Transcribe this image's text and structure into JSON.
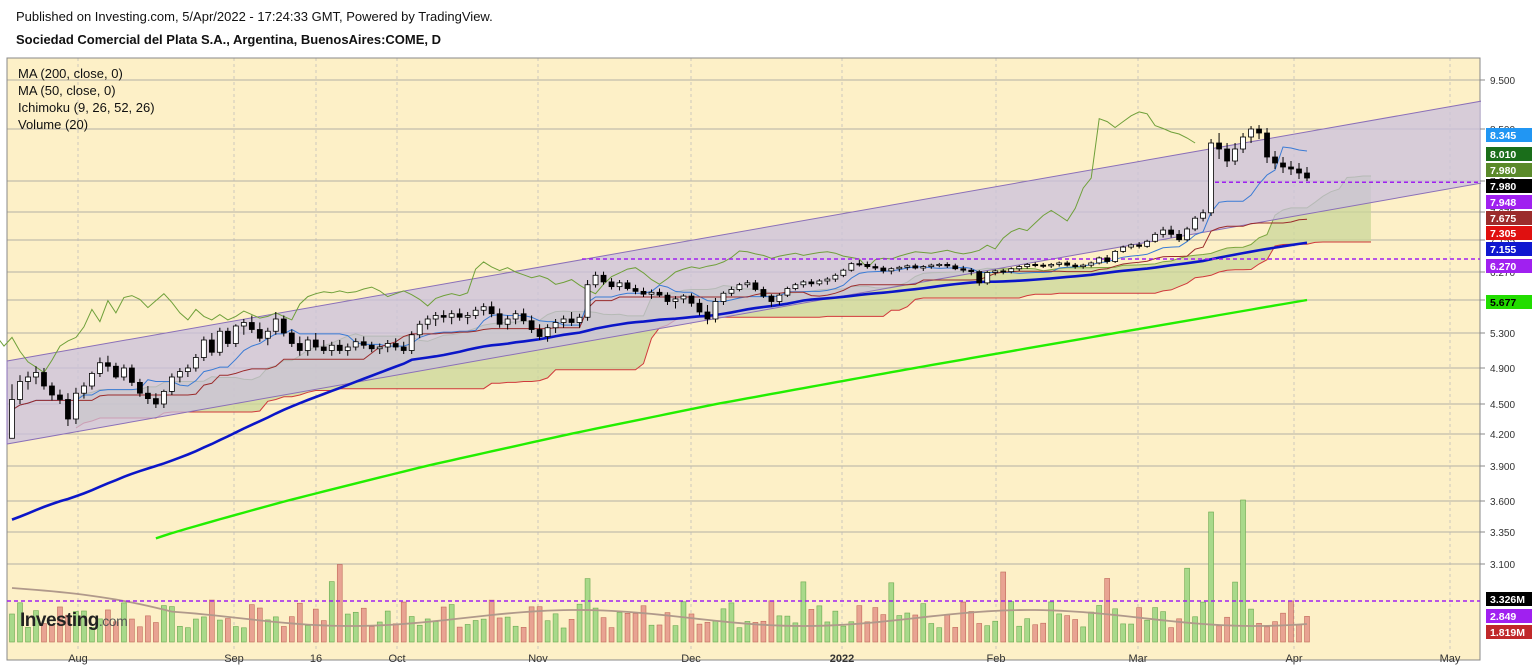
{
  "header": {
    "published": "Published on Investing.com, 5/Apr/2022 - 17:24:33 GMT, Powered by TradingView.",
    "title": "Sociedad Comercial del Plata S.A., Argentina, BuenosAires:COME, D"
  },
  "legend": [
    "MA (200, close, 0)",
    "MA (50, close, 0)",
    "Ichimoku (9, 26, 52, 26)",
    "Volume (20)"
  ],
  "logo": {
    "main": "Investing",
    "suffix": ".com"
  },
  "colors": {
    "background": "#fdf0c7",
    "up_candle": "#ffffff",
    "down_candle": "#000000",
    "ma200": "#22ee00",
    "ma50": "#0b16c8",
    "channel_fill": "#c9c0dd",
    "channel_line": "#8a6fb8",
    "cloud": "#c9d79a",
    "tenkan": "#3a7bd5",
    "kijun": "#9b2c2c",
    "span_a": "#7da640",
    "span_b": "#d0393b",
    "dashed": "#a020f0",
    "vol_up": "#a8d98a",
    "vol_down": "#e8a392",
    "vol_ma": "#b0998b"
  },
  "chart_data": {
    "type": "candlestick",
    "price_axis_ticks": [
      "9.500",
      "8.500",
      "7.980",
      "7.675",
      "7.155",
      "6.270",
      "5.677",
      "5.300",
      "4.900",
      "4.500",
      "4.200",
      "3.900",
      "3.600",
      "3.350",
      "3.100"
    ],
    "x_ticks": [
      "Aug",
      "Sep",
      "16",
      "Oct",
      "Nov",
      "Dec",
      "2022",
      "Feb",
      "Mar",
      "Apr",
      "May"
    ],
    "price_labels": [
      {
        "text": "8.345",
        "color": "#2196f3"
      },
      {
        "text": "8.010",
        "color": "#1a6e1a"
      },
      {
        "text": "7.980",
        "color": "#5a8a2a"
      },
      {
        "text": "7.980",
        "color": "#000000"
      },
      {
        "text": "7.948",
        "color": "#a020f0"
      },
      {
        "text": "7.675",
        "color": "#9b2c2c"
      },
      {
        "text": "7.305",
        "color": "#e01010"
      },
      {
        "text": "7.155",
        "color": "#1018d0"
      },
      {
        "text": "6.270",
        "color": "#a020f0"
      },
      {
        "text": "5.677",
        "color": "#22dd00"
      },
      {
        "text": "3.326M",
        "color": "#000000"
      },
      {
        "text": "2.849",
        "color": "#a020f0"
      },
      {
        "text": "1.819M",
        "color": "#c0282a"
      }
    ],
    "dashed_levels": [
      7.948,
      6.27
    ],
    "volume_dashed": 2.849,
    "ma200": {
      "start": 3.1,
      "end": 5.677
    },
    "ma50": {
      "start": 3.45,
      "end": 7.155
    },
    "candles": [
      [
        4.16,
        4.72,
        4.16,
        4.55
      ],
      [
        4.55,
        4.82,
        4.5,
        4.75
      ],
      [
        4.75,
        4.86,
        4.66,
        4.8
      ],
      [
        4.8,
        4.92,
        4.72,
        4.85
      ],
      [
        4.85,
        4.9,
        4.66,
        4.7
      ],
      [
        4.7,
        4.74,
        4.54,
        4.6
      ],
      [
        4.6,
        4.66,
        4.5,
        4.55
      ],
      [
        4.55,
        4.62,
        4.28,
        4.35
      ],
      [
        4.35,
        4.68,
        4.3,
        4.62
      ],
      [
        4.62,
        4.74,
        4.56,
        4.7
      ],
      [
        4.7,
        4.86,
        4.66,
        4.84
      ],
      [
        4.84,
        5.02,
        4.8,
        4.96
      ],
      [
        4.96,
        5.04,
        4.86,
        4.92
      ],
      [
        4.92,
        4.96,
        4.78,
        4.8
      ],
      [
        4.8,
        4.94,
        4.76,
        4.9
      ],
      [
        4.9,
        4.94,
        4.7,
        4.74
      ],
      [
        4.74,
        4.78,
        4.58,
        4.62
      ],
      [
        4.62,
        4.7,
        4.5,
        4.56
      ],
      [
        4.56,
        4.62,
        4.46,
        4.5
      ],
      [
        4.5,
        4.66,
        4.46,
        4.64
      ],
      [
        4.64,
        4.84,
        4.6,
        4.8
      ],
      [
        4.8,
        4.9,
        4.74,
        4.86
      ],
      [
        4.86,
        4.94,
        4.8,
        4.9
      ],
      [
        4.9,
        5.06,
        4.86,
        5.02
      ],
      [
        5.02,
        5.26,
        4.98,
        5.22
      ],
      [
        5.22,
        5.3,
        5.04,
        5.08
      ],
      [
        5.08,
        5.36,
        5.04,
        5.32
      ],
      [
        5.32,
        5.36,
        5.14,
        5.18
      ],
      [
        5.18,
        5.4,
        5.14,
        5.38
      ],
      [
        5.38,
        5.46,
        5.28,
        5.42
      ],
      [
        5.42,
        5.5,
        5.3,
        5.34
      ],
      [
        5.34,
        5.42,
        5.2,
        5.24
      ],
      [
        5.24,
        5.36,
        5.16,
        5.32
      ],
      [
        5.32,
        5.54,
        5.28,
        5.46
      ],
      [
        5.46,
        5.5,
        5.26,
        5.3
      ],
      [
        5.3,
        5.34,
        5.14,
        5.18
      ],
      [
        5.18,
        5.26,
        5.04,
        5.1
      ],
      [
        5.1,
        5.26,
        5.04,
        5.22
      ],
      [
        5.22,
        5.3,
        5.1,
        5.14
      ],
      [
        5.14,
        5.22,
        5.06,
        5.1
      ],
      [
        5.1,
        5.2,
        5.04,
        5.16
      ],
      [
        5.16,
        5.22,
        5.06,
        5.1
      ],
      [
        5.1,
        5.18,
        5.04,
        5.14
      ],
      [
        5.14,
        5.24,
        5.1,
        5.2
      ],
      [
        5.2,
        5.26,
        5.12,
        5.16
      ],
      [
        5.16,
        5.2,
        5.08,
        5.12
      ],
      [
        5.12,
        5.18,
        5.06,
        5.14
      ],
      [
        5.14,
        5.22,
        5.08,
        5.18
      ],
      [
        5.18,
        5.24,
        5.1,
        5.14
      ],
      [
        5.14,
        5.2,
        5.06,
        5.1
      ],
      [
        5.1,
        5.32,
        5.06,
        5.28
      ],
      [
        5.28,
        5.44,
        5.24,
        5.4
      ],
      [
        5.4,
        5.5,
        5.34,
        5.46
      ],
      [
        5.46,
        5.54,
        5.38,
        5.5
      ],
      [
        5.5,
        5.56,
        5.42,
        5.48
      ],
      [
        5.48,
        5.56,
        5.4,
        5.52
      ],
      [
        5.52,
        5.58,
        5.44,
        5.48
      ],
      [
        5.48,
        5.54,
        5.4,
        5.5
      ],
      [
        5.5,
        5.6,
        5.46,
        5.56
      ],
      [
        5.56,
        5.64,
        5.5,
        5.6
      ],
      [
        5.6,
        5.66,
        5.48,
        5.52
      ],
      [
        5.52,
        5.58,
        5.36,
        5.4
      ],
      [
        5.4,
        5.5,
        5.34,
        5.46
      ],
      [
        5.46,
        5.56,
        5.4,
        5.52
      ],
      [
        5.52,
        5.58,
        5.4,
        5.44
      ],
      [
        5.44,
        5.5,
        5.3,
        5.34
      ],
      [
        5.34,
        5.4,
        5.22,
        5.26
      ],
      [
        5.26,
        5.4,
        5.2,
        5.36
      ],
      [
        5.36,
        5.46,
        5.3,
        5.42
      ],
      [
        5.42,
        5.5,
        5.36,
        5.46
      ],
      [
        5.46,
        5.54,
        5.38,
        5.42
      ],
      [
        5.42,
        5.52,
        5.36,
        5.48
      ],
      [
        5.48,
        6.1,
        5.44,
        6.0
      ],
      [
        6.0,
        6.28,
        5.94,
        6.2
      ],
      [
        6.2,
        6.28,
        6.0,
        6.06
      ],
      [
        6.06,
        6.14,
        5.9,
        5.96
      ],
      [
        5.96,
        6.1,
        5.88,
        6.04
      ],
      [
        6.04,
        6.1,
        5.88,
        5.92
      ],
      [
        5.92,
        6.0,
        5.8,
        5.86
      ],
      [
        5.86,
        5.94,
        5.74,
        5.8
      ],
      [
        5.8,
        5.9,
        5.7,
        5.84
      ],
      [
        5.84,
        5.92,
        5.74,
        5.78
      ],
      [
        5.78,
        5.84,
        5.62,
        5.66
      ],
      [
        5.66,
        5.76,
        5.58,
        5.7
      ],
      [
        5.7,
        5.8,
        5.64,
        5.76
      ],
      [
        5.76,
        5.82,
        5.6,
        5.64
      ],
      [
        5.64,
        5.7,
        5.5,
        5.54
      ],
      [
        5.54,
        5.62,
        5.4,
        5.46
      ],
      [
        5.46,
        5.72,
        5.42,
        5.66
      ],
      [
        5.66,
        5.86,
        5.62,
        5.82
      ],
      [
        5.82,
        5.96,
        5.76,
        5.9
      ],
      [
        5.9,
        6.04,
        5.86,
        6.0
      ],
      [
        6.0,
        6.1,
        5.94,
        6.04
      ],
      [
        6.04,
        6.1,
        5.86,
        5.9
      ],
      [
        5.9,
        5.96,
        5.72,
        5.76
      ],
      [
        5.76,
        5.8,
        5.6,
        5.66
      ],
      [
        5.66,
        5.82,
        5.62,
        5.78
      ],
      [
        5.78,
        5.96,
        5.74,
        5.92
      ],
      [
        5.92,
        6.04,
        5.88,
        6.0
      ],
      [
        6.0,
        6.1,
        5.94,
        6.06
      ],
      [
        6.06,
        6.12,
        5.96,
        6.02
      ],
      [
        6.02,
        6.12,
        5.98,
        6.08
      ],
      [
        6.08,
        6.16,
        6.0,
        6.12
      ],
      [
        6.12,
        6.24,
        6.06,
        6.2
      ],
      [
        6.2,
        6.36,
        6.16,
        6.32
      ],
      [
        6.32,
        6.54,
        6.28,
        6.5
      ],
      [
        6.5,
        6.6,
        6.42,
        6.48
      ],
      [
        6.48,
        6.56,
        6.36,
        6.42
      ],
      [
        6.42,
        6.5,
        6.32,
        6.38
      ],
      [
        6.38,
        6.44,
        6.24,
        6.3
      ],
      [
        6.3,
        6.4,
        6.22,
        6.36
      ],
      [
        6.36,
        6.44,
        6.28,
        6.4
      ],
      [
        6.4,
        6.48,
        6.32,
        6.44
      ],
      [
        6.44,
        6.5,
        6.34,
        6.38
      ],
      [
        6.38,
        6.46,
        6.3,
        6.42
      ],
      [
        6.42,
        6.5,
        6.36,
        6.46
      ],
      [
        6.46,
        6.52,
        6.4,
        6.48
      ],
      [
        6.48,
        6.54,
        6.38,
        6.44
      ],
      [
        6.44,
        6.5,
        6.32,
        6.36
      ],
      [
        6.36,
        6.44,
        6.26,
        6.32
      ],
      [
        6.32,
        6.38,
        6.2,
        6.28
      ],
      [
        6.28,
        6.32,
        5.98,
        6.04
      ],
      [
        6.04,
        6.3,
        6.0,
        6.26
      ],
      [
        6.26,
        6.34,
        6.2,
        6.3
      ],
      [
        6.3,
        6.36,
        6.22,
        6.28
      ],
      [
        6.28,
        6.4,
        6.24,
        6.36
      ],
      [
        6.36,
        6.46,
        6.3,
        6.42
      ],
      [
        6.42,
        6.52,
        6.36,
        6.48
      ],
      [
        6.48,
        6.54,
        6.4,
        6.46
      ],
      [
        6.46,
        6.52,
        6.38,
        6.44
      ],
      [
        6.44,
        6.52,
        6.38,
        6.48
      ],
      [
        6.48,
        6.56,
        6.42,
        6.52
      ],
      [
        6.52,
        6.58,
        6.42,
        6.46
      ],
      [
        6.46,
        6.52,
        6.36,
        6.42
      ],
      [
        6.42,
        6.5,
        6.36,
        6.46
      ],
      [
        6.46,
        6.56,
        6.4,
        6.52
      ],
      [
        6.52,
        6.7,
        6.48,
        6.66
      ],
      [
        6.66,
        6.74,
        6.5,
        6.56
      ],
      [
        6.56,
        6.88,
        6.52,
        6.84
      ],
      [
        6.84,
        7.0,
        6.8,
        6.96
      ],
      [
        6.96,
        7.06,
        6.9,
        7.02
      ],
      [
        7.02,
        7.1,
        6.92,
        6.98
      ],
      [
        6.98,
        7.16,
        6.94,
        7.12
      ],
      [
        7.12,
        7.3,
        7.08,
        7.26
      ],
      [
        7.26,
        7.4,
        7.2,
        7.34
      ],
      [
        7.34,
        7.42,
        7.2,
        7.26
      ],
      [
        7.26,
        7.34,
        7.1,
        7.16
      ],
      [
        7.16,
        7.4,
        7.12,
        7.36
      ],
      [
        7.36,
        7.6,
        7.32,
        7.56
      ],
      [
        7.56,
        7.7,
        7.5,
        7.66
      ],
      [
        7.66,
        8.4,
        7.6,
        8.36
      ],
      [
        8.36,
        8.46,
        8.2,
        8.3
      ],
      [
        8.3,
        8.36,
        8.12,
        8.18
      ],
      [
        8.18,
        8.36,
        8.14,
        8.3
      ],
      [
        8.3,
        8.46,
        8.26,
        8.42
      ],
      [
        8.42,
        8.56,
        8.36,
        8.5
      ],
      [
        8.5,
        8.58,
        8.4,
        8.46
      ],
      [
        8.46,
        8.52,
        8.16,
        8.22
      ],
      [
        8.22,
        8.28,
        8.1,
        8.16
      ],
      [
        8.16,
        8.22,
        8.06,
        8.12
      ],
      [
        8.12,
        8.18,
        8.04,
        8.1
      ],
      [
        8.1,
        8.16,
        8.0,
        8.06
      ],
      [
        8.06,
        8.12,
        7.98,
        8.01
      ]
    ],
    "volume_ma_note": "",
    "volume_max_note": ""
  }
}
